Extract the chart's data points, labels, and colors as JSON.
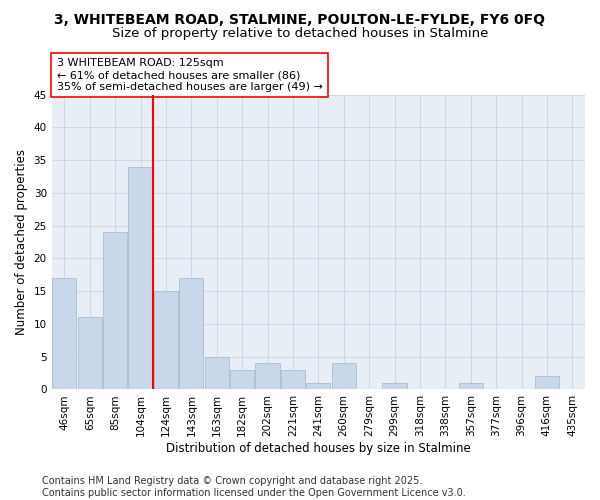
{
  "title1": "3, WHITEBEAM ROAD, STALMINE, POULTON-LE-FYLDE, FY6 0FQ",
  "title2": "Size of property relative to detached houses in Stalmine",
  "xlabel": "Distribution of detached houses by size in Stalmine",
  "ylabel": "Number of detached properties",
  "categories": [
    "46sqm",
    "65sqm",
    "85sqm",
    "104sqm",
    "124sqm",
    "143sqm",
    "163sqm",
    "182sqm",
    "202sqm",
    "221sqm",
    "241sqm",
    "260sqm",
    "279sqm",
    "299sqm",
    "318sqm",
    "338sqm",
    "357sqm",
    "377sqm",
    "396sqm",
    "416sqm",
    "435sqm"
  ],
  "values": [
    17,
    11,
    24,
    34,
    15,
    17,
    5,
    3,
    4,
    3,
    1,
    4,
    0,
    1,
    0,
    0,
    1,
    0,
    0,
    2,
    0
  ],
  "bar_color": "#c8d8ea",
  "bar_edge_color": "#a8bfd4",
  "vline_x": 3.5,
  "vline_color": "red",
  "annotation_text": "3 WHITEBEAM ROAD: 125sqm\n← 61% of detached houses are smaller (86)\n35% of semi-detached houses are larger (49) →",
  "annotation_box_color": "white",
  "annotation_box_edge": "red",
  "ylim": [
    0,
    45
  ],
  "yticks": [
    0,
    5,
    10,
    15,
    20,
    25,
    30,
    35,
    40,
    45
  ],
  "grid_color": "#ccd8e8",
  "bg_color": "#e8eef6",
  "footer": "Contains HM Land Registry data © Crown copyright and database right 2025.\nContains public sector information licensed under the Open Government Licence v3.0.",
  "title_fontsize": 10,
  "subtitle_fontsize": 9.5,
  "axis_label_fontsize": 8.5,
  "tick_fontsize": 7.5,
  "annotation_fontsize": 8,
  "footer_fontsize": 7
}
